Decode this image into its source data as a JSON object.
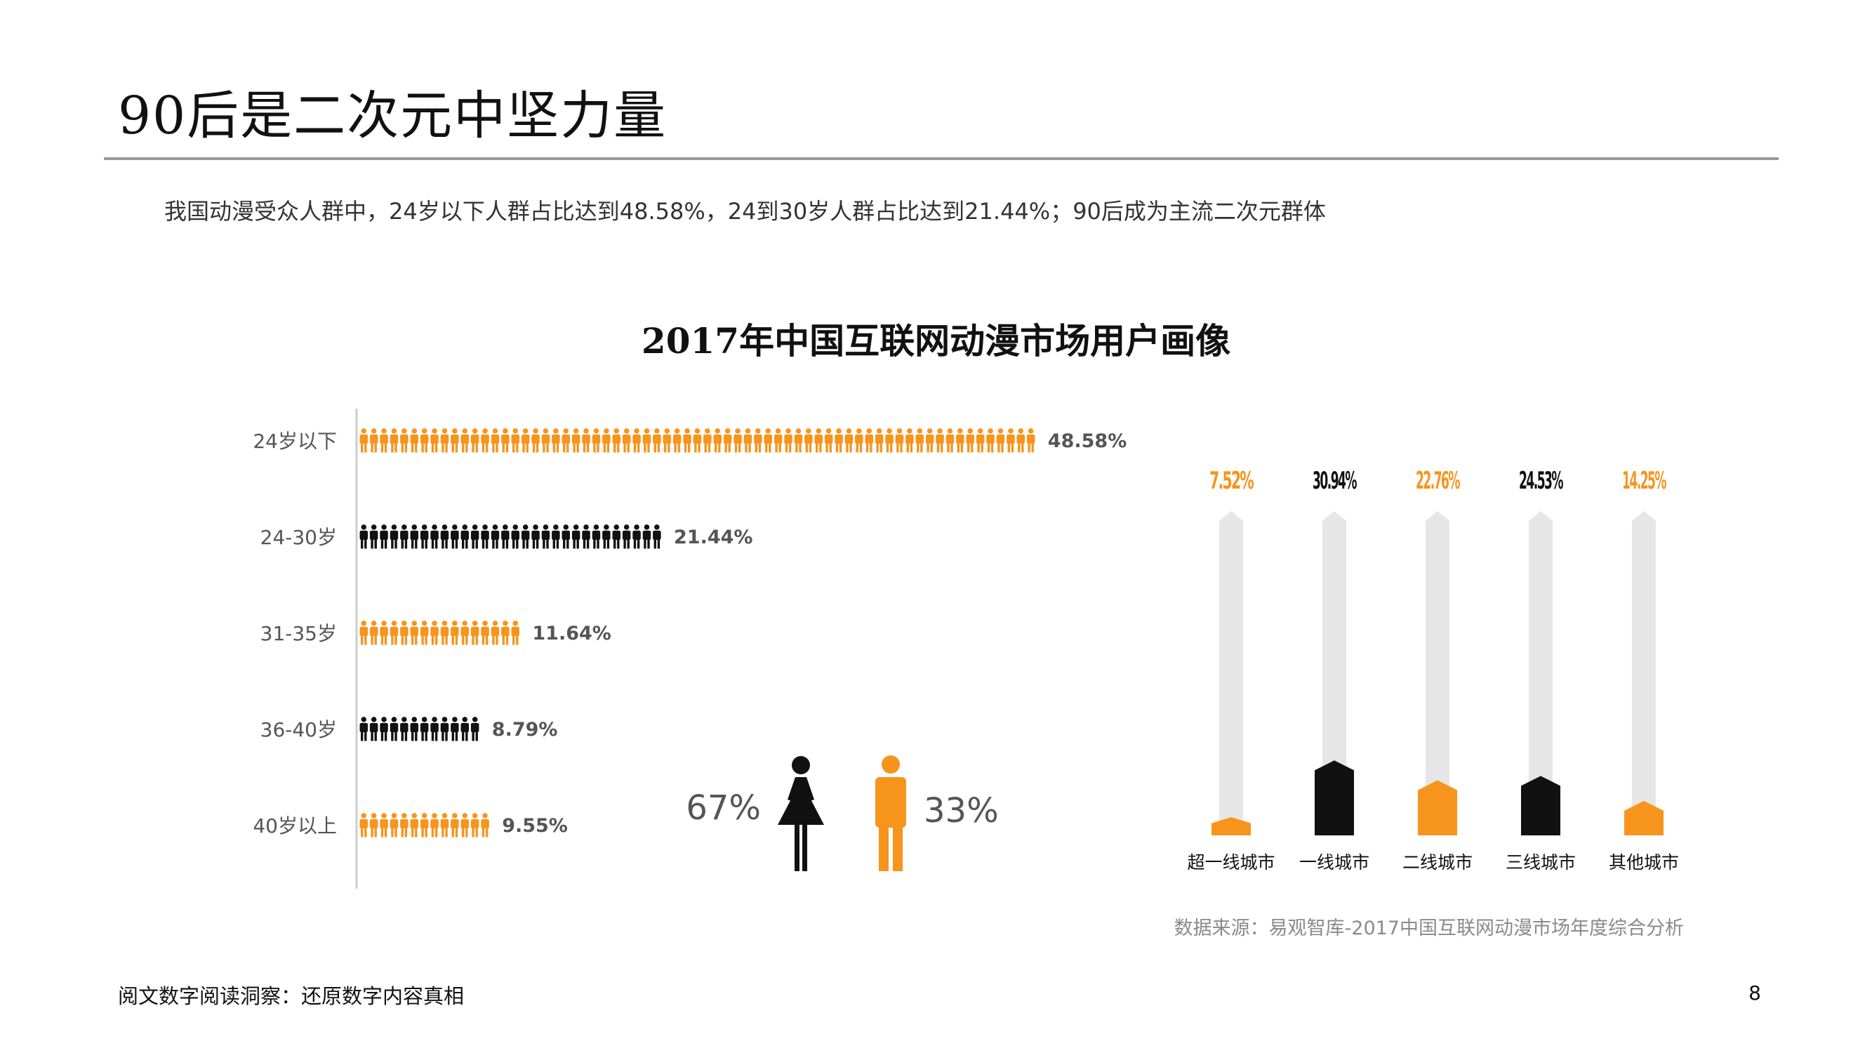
{
  "page": {
    "title": "90后是二次元中坚力量",
    "subtitle": "我国动漫受众人群中，24岁以下人群占比达到48.58%，24到30岁人群占比达到21.44%；90后成为主流二次元群体",
    "source": "数据来源：易观智库-2017中国互联网动漫市场年度综合分析",
    "footer": "阅文数字阅读洞察：还原数字内容真相",
    "page_number": "8"
  },
  "colors": {
    "orange": "#F7941D",
    "black": "#111111",
    "track": "#E6E6E6",
    "label": "#555555"
  },
  "chart_data": [
    {
      "type": "bar",
      "title": "2017年中国互联网动漫市场用户画像",
      "categories": [
        "24岁以下",
        "24-30岁",
        "31-35岁",
        "36-40岁",
        "40岁以上"
      ],
      "values": [
        48.58,
        21.44,
        11.64,
        8.79,
        9.55
      ],
      "value_labels": [
        "48.58%",
        "21.44%",
        "11.64%",
        "8.79%",
        "9.55%"
      ],
      "icon_colors": [
        "#F7941D",
        "#111111",
        "#F7941D",
        "#111111",
        "#F7941D"
      ],
      "icon": "person-icon"
    },
    {
      "type": "pie",
      "categories": [
        "female",
        "male"
      ],
      "values": [
        67,
        33
      ],
      "value_labels": [
        "67%",
        "33%"
      ],
      "icons": [
        "female-icon",
        "male-icon"
      ],
      "colors": [
        "#111111",
        "#F7941D"
      ]
    },
    {
      "type": "bar",
      "categories": [
        "超一线城市",
        "一线城市",
        "二线城市",
        "三线城市",
        "其他城市"
      ],
      "values": [
        7.52,
        30.94,
        22.76,
        24.53,
        14.25
      ],
      "value_labels": [
        "7.52%",
        "30.94%",
        "22.76%",
        "24.53%",
        "14.25%"
      ],
      "colors": [
        "#F7941D",
        "#111111",
        "#F7941D",
        "#111111",
        "#F7941D"
      ]
    }
  ]
}
